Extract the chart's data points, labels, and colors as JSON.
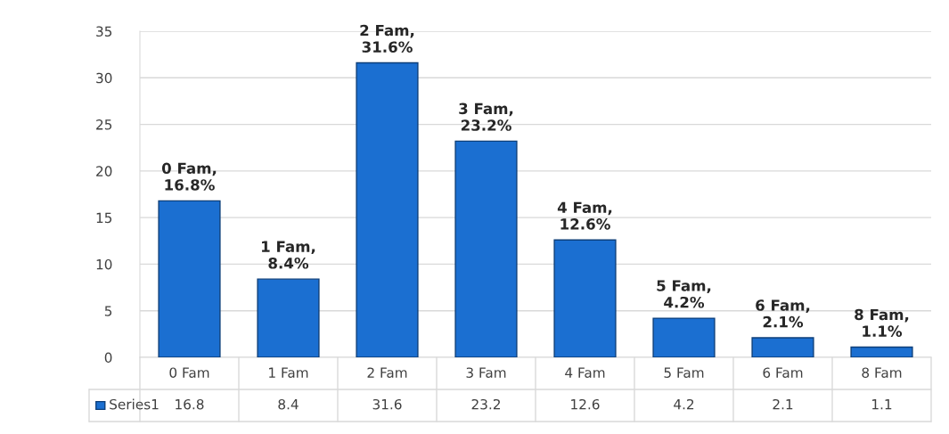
{
  "chart_data": {
    "type": "bar",
    "categories": [
      "0 Fam",
      "1 Fam",
      "2 Fam",
      "3 Fam",
      "4 Fam",
      "5 Fam",
      "6 Fam",
      "8 Fam"
    ],
    "series": [
      {
        "name": "Series1",
        "color": "#1b6fd1",
        "values": [
          16.8,
          8.4,
          31.6,
          23.2,
          12.6,
          4.2,
          2.1,
          1.1
        ]
      }
    ],
    "annotations": [
      {
        "text": "0 Fam,\n16.8%",
        "x": "0 Fam",
        "y": 16.8
      },
      {
        "text": "1 Fam,\n8.4%",
        "x": "1 Fam",
        "y": 8.4
      },
      {
        "text": "2 Fam,\n31.6%",
        "x": "2 Fam",
        "y": 31.6
      },
      {
        "text": "3 Fam,\n23.2%",
        "x": "3 Fam",
        "y": 23.2
      },
      {
        "text": "4 Fam,\n12.6%",
        "x": "4 Fam",
        "y": 12.6
      },
      {
        "text": "5 Fam,\n4.2%",
        "x": "5 Fam",
        "y": 4.2
      },
      {
        "text": "6 Fam,\n2.1%",
        "x": "6 Fam",
        "y": 2.1
      },
      {
        "text": "8 Fam,\n1.1%",
        "x": "8 Fam",
        "y": 1.1
      }
    ],
    "ylim": [
      0,
      35
    ],
    "yticks": [
      0,
      5,
      10,
      15,
      20,
      25,
      30,
      35
    ],
    "grid": "y",
    "data_labels": true
  }
}
